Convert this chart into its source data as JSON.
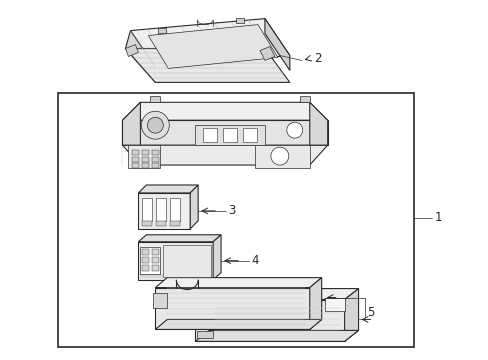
{
  "bg_color": "#ffffff",
  "line_color": "#2a2a2a",
  "hatch_color": "#888888",
  "fig_width": 4.89,
  "fig_height": 3.6,
  "dpi": 100,
  "label_fontsize": 8.5,
  "lw_main": 0.8,
  "lw_thin": 0.5,
  "lw_thick": 1.2
}
